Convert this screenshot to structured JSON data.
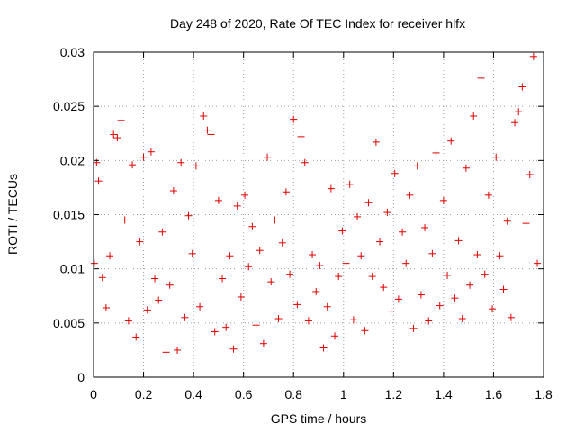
{
  "chart_data": {
    "type": "scatter",
    "title": "Day 248 of 2020, Rate Of TEC Index for receiver hlfx",
    "xlabel": "GPS time / hours",
    "ylabel": "ROTI / TECUs",
    "xlim": [
      0,
      1.8
    ],
    "ylim": [
      0,
      0.03
    ],
    "xticks": [
      0,
      0.2,
      0.4,
      0.6,
      0.8,
      1,
      1.2,
      1.4,
      1.6,
      1.8
    ],
    "xtick_labels": [
      "0",
      "0.2",
      "0.4",
      "0.6",
      "0.8",
      "1",
      "1.2",
      "1.4",
      "1.6",
      "1.8"
    ],
    "yticks": [
      0,
      0.005,
      0.01,
      0.015,
      0.02,
      0.025,
      0.03
    ],
    "ytick_labels": [
      "0",
      "0.005",
      "0.01",
      "0.015",
      "0.02",
      "0.025",
      "0.03"
    ],
    "grid": true,
    "marker": "+",
    "marker_color": "#dd0000",
    "series": [
      {
        "name": "ROTI",
        "x": [
          0.003,
          0.012,
          0.02,
          0.035,
          0.05,
          0.065,
          0.08,
          0.095,
          0.11,
          0.125,
          0.14,
          0.155,
          0.17,
          0.185,
          0.2,
          0.215,
          0.23,
          0.245,
          0.26,
          0.275,
          0.29,
          0.305,
          0.32,
          0.335,
          0.35,
          0.365,
          0.38,
          0.395,
          0.41,
          0.425,
          0.44,
          0.455,
          0.47,
          0.485,
          0.5,
          0.515,
          0.53,
          0.545,
          0.56,
          0.575,
          0.59,
          0.605,
          0.62,
          0.635,
          0.65,
          0.665,
          0.68,
          0.695,
          0.71,
          0.725,
          0.74,
          0.755,
          0.77,
          0.785,
          0.8,
          0.815,
          0.83,
          0.845,
          0.86,
          0.875,
          0.89,
          0.905,
          0.92,
          0.935,
          0.95,
          0.965,
          0.98,
          0.995,
          1.01,
          1.025,
          1.04,
          1.055,
          1.07,
          1.085,
          1.1,
          1.115,
          1.13,
          1.145,
          1.16,
          1.175,
          1.19,
          1.205,
          1.22,
          1.235,
          1.25,
          1.265,
          1.28,
          1.295,
          1.31,
          1.325,
          1.34,
          1.355,
          1.37,
          1.385,
          1.4,
          1.415,
          1.43,
          1.445,
          1.46,
          1.475,
          1.49,
          1.505,
          1.52,
          1.535,
          1.55,
          1.565,
          1.58,
          1.595,
          1.61,
          1.625,
          1.64,
          1.655,
          1.67,
          1.685,
          1.7,
          1.715,
          1.73,
          1.745,
          1.76,
          1.775
        ],
        "y": [
          0.0105,
          0.0198,
          0.0181,
          0.0092,
          0.0064,
          0.0112,
          0.0224,
          0.0221,
          0.0237,
          0.0145,
          0.0052,
          0.0196,
          0.0037,
          0.0125,
          0.0203,
          0.0062,
          0.0208,
          0.0091,
          0.0071,
          0.0134,
          0.0023,
          0.0085,
          0.0172,
          0.0025,
          0.0198,
          0.0055,
          0.0149,
          0.0114,
          0.0195,
          0.0065,
          0.0241,
          0.0228,
          0.0224,
          0.0042,
          0.0163,
          0.0091,
          0.0046,
          0.0112,
          0.0026,
          0.0158,
          0.0074,
          0.0168,
          0.0102,
          0.0139,
          0.0048,
          0.0117,
          0.0031,
          0.0203,
          0.0088,
          0.0145,
          0.0054,
          0.0124,
          0.0171,
          0.0095,
          0.0238,
          0.0067,
          0.0222,
          0.0198,
          0.0052,
          0.0113,
          0.0079,
          0.0103,
          0.0027,
          0.0065,
          0.0174,
          0.0038,
          0.0093,
          0.0135,
          0.0105,
          0.0178,
          0.0053,
          0.0148,
          0.0112,
          0.0043,
          0.0161,
          0.0093,
          0.0217,
          0.0125,
          0.0083,
          0.0152,
          0.0061,
          0.0188,
          0.0072,
          0.0134,
          0.0105,
          0.0168,
          0.0045,
          0.0195,
          0.0076,
          0.0138,
          0.0052,
          0.0114,
          0.0207,
          0.0066,
          0.0163,
          0.0094,
          0.0218,
          0.0073,
          0.0126,
          0.0054,
          0.0193,
          0.0085,
          0.0241,
          0.0113,
          0.0276,
          0.0095,
          0.0168,
          0.0063,
          0.0203,
          0.0112,
          0.0081,
          0.0144,
          0.0055,
          0.0235,
          0.0245,
          0.0268,
          0.0142,
          0.0187,
          0.0296,
          0.0105
        ]
      }
    ]
  }
}
